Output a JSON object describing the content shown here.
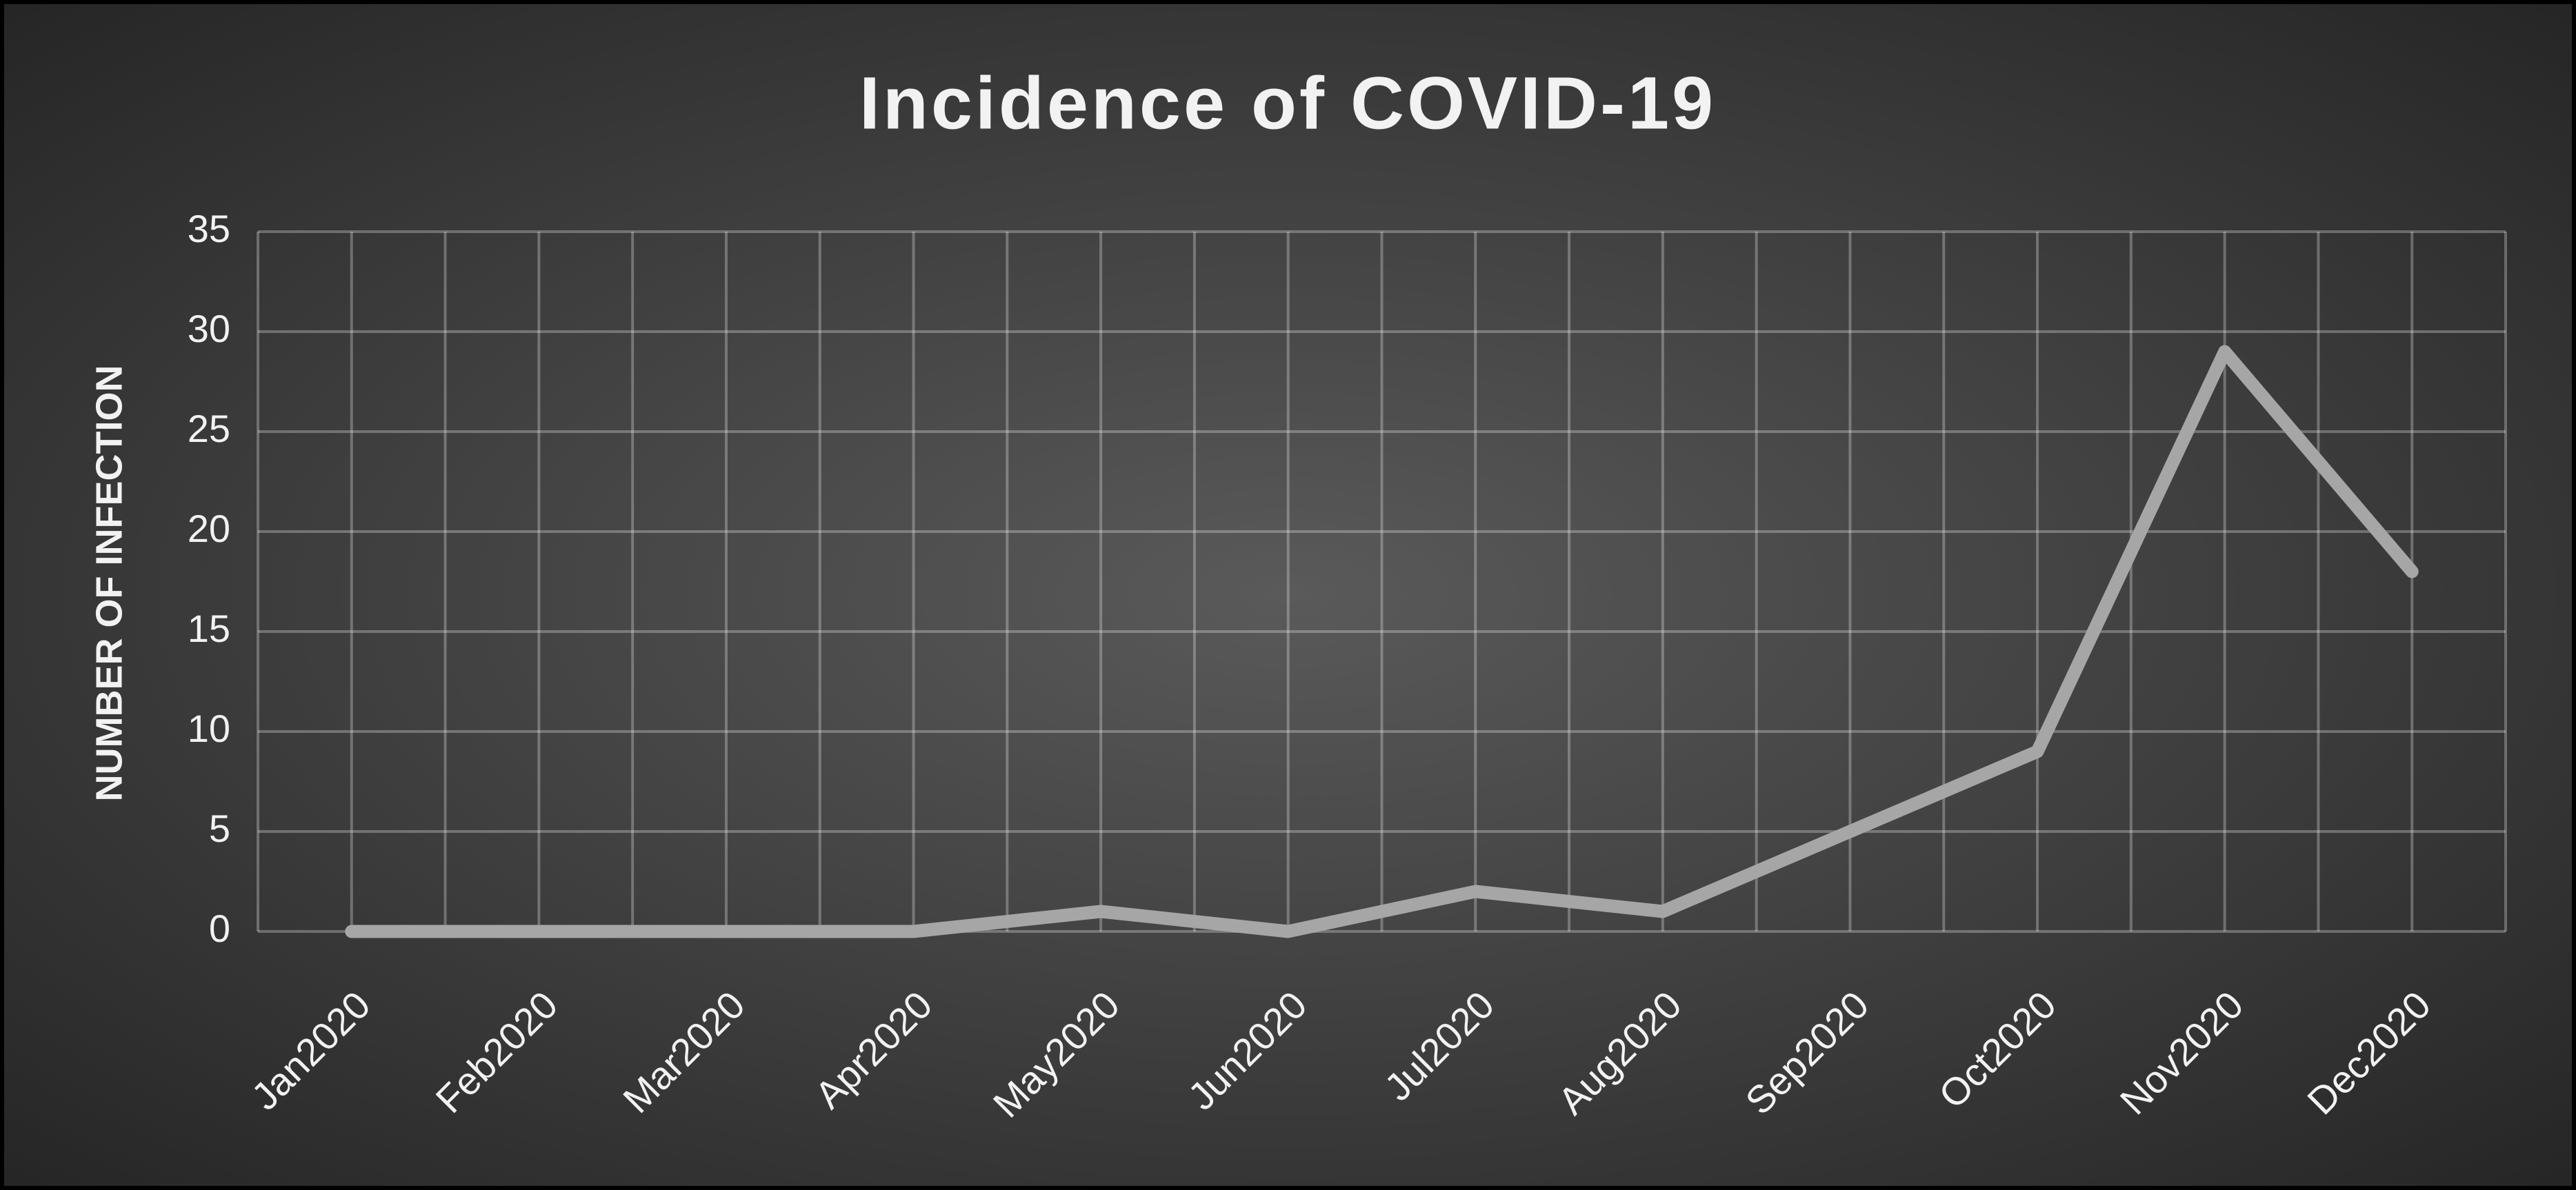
{
  "chart_data": {
    "type": "line",
    "title": "Incidence of COVID-19",
    "y_label": "NUMBER OF INFECTION",
    "categories": [
      "Jan2020",
      "Feb2020",
      "Mar2020",
      "Apr2020",
      "May2020",
      "Jun2020",
      "Jul2020",
      "Aug2020",
      "Sep2020",
      "Oct2020",
      "Nov2020",
      "Dec2020"
    ],
    "values": [
      0,
      0,
      0,
      0,
      1,
      0,
      2,
      1,
      5,
      9,
      29,
      18
    ],
    "color": "#a6a6a6",
    "ylim": [
      0,
      35
    ],
    "yticks": [
      0,
      5,
      10,
      15,
      20,
      25,
      30,
      35
    ],
    "grid": true
  }
}
